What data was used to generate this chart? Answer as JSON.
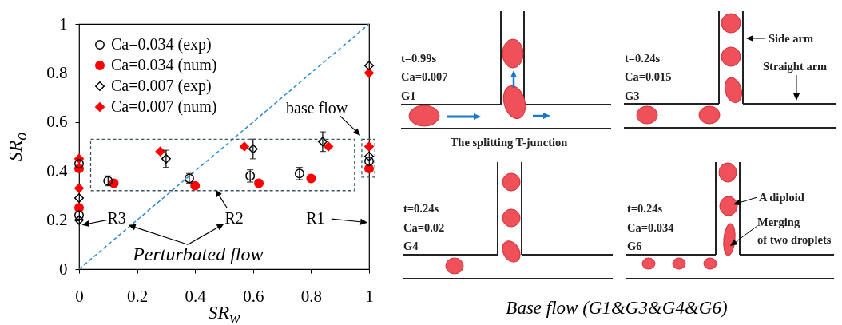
{
  "chart_data": [
    {
      "type": "scatter",
      "xlabel": "SR$_{w}$",
      "ylabel": "SR$_{o}$",
      "xlim": [
        0,
        1
      ],
      "ylim": [
        0,
        1
      ],
      "xticks": [
        0,
        0.2,
        0.4,
        0.6,
        0.8,
        1
      ],
      "yticks": [
        0,
        0.2,
        0.4,
        0.6,
        0.8,
        1
      ],
      "grid": false,
      "legend": "top left",
      "series": [
        {
          "name": "Ca=0.034 (exp)",
          "color": "#000000",
          "marker": "circle",
          "x": [
            0,
            0,
            0.1,
            0.38,
            0.59,
            0.76,
            1
          ],
          "values": [
            0.22,
            0.43,
            0.36,
            0.37,
            0.38,
            0.39,
            0.44
          ],
          "errors": [
            null,
            null,
            0.02,
            0.02,
            0.025,
            0.025,
            null
          ]
        },
        {
          "name": "Ca=0.034 (num)",
          "color": "#ff0000",
          "marker": "circle",
          "x": [
            0,
            0,
            0.12,
            0.4,
            0.62,
            0.8,
            1
          ],
          "values": [
            0.25,
            0.41,
            0.35,
            0.34,
            0.35,
            0.37,
            0.41
          ]
        },
        {
          "name": "Ca=0.007 (exp)",
          "color": "#000000",
          "marker": "diamond",
          "x": [
            0,
            0,
            0.3,
            0.6,
            0.84,
            1,
            1
          ],
          "values": [
            0.2,
            0.29,
            0.45,
            0.49,
            0.52,
            0.46,
            0.83
          ],
          "errors": [
            null,
            null,
            0.035,
            0.04,
            0.04,
            null,
            null
          ]
        },
        {
          "name": "Ca=0.007 (num)",
          "color": "#ff0000",
          "marker": "diamond",
          "x": [
            0,
            0,
            0.28,
            0.57,
            0.86,
            1,
            1
          ],
          "values": [
            0.33,
            0.45,
            0.48,
            0.5,
            0.5,
            0.5,
            0.8
          ]
        },
        {
          "type": "line",
          "color": "#2e8bd6",
          "line_style": "dashed",
          "x": [
            0,
            1
          ],
          "values": [
            0,
            1
          ]
        }
      ],
      "annotations": [
        "base flow",
        "R1",
        "R2",
        "R3",
        "Perturbated flow"
      ]
    },
    {
      "type": "other",
      "title": "Base flow (G1&G3&G4&G6)",
      "annotations": [
        "t=0.99s",
        "Ca=0.007",
        "G1",
        "The splitting T-junction",
        "t=0.24s",
        "Ca=0.015",
        "G3",
        "Side arm",
        "Straight arm",
        "t=0.24s",
        "Ca=0.02",
        "G4",
        "t=0.24s",
        "Ca=0.034",
        "G6",
        "A diploid",
        "Merging",
        "of two droplets"
      ]
    }
  ]
}
